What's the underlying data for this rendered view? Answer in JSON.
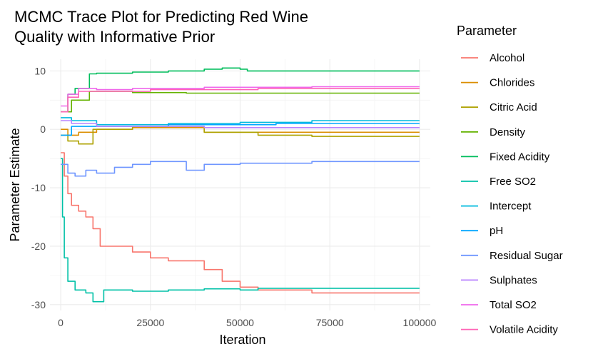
{
  "chart_data": {
    "type": "line",
    "title_lines": [
      "MCMC Trace Plot for Predicting Red Wine",
      "Quality with Informative Prior"
    ],
    "xlabel": "Iteration",
    "ylabel": "Parameter Estimate",
    "xlim": [
      -3000,
      103000
    ],
    "ylim": [
      -31,
      12
    ],
    "x_ticks": [
      0,
      25000,
      50000,
      75000,
      100000
    ],
    "x_tick_labels": [
      "0",
      "25000",
      "50000",
      "75000",
      "100000"
    ],
    "y_ticks": [
      -30,
      -20,
      -10,
      0,
      10
    ],
    "y_tick_labels": [
      "-30",
      "-20",
      "-10",
      "0",
      "10"
    ],
    "grid": true,
    "legend_title": "Parameter",
    "legend_position": "right",
    "series": [
      {
        "name": "Alcohol",
        "color": "#F8766D",
        "step": true,
        "x": [
          0,
          1000,
          2000,
          3000,
          5000,
          7000,
          9000,
          11000,
          20000,
          25000,
          30000,
          40000,
          45000,
          50000,
          55000,
          70000,
          100000
        ],
        "y": [
          -4,
          -8,
          -11,
          -13,
          -14,
          -15,
          -17,
          -20,
          -21,
          -22,
          -22.5,
          -24,
          -26,
          -27,
          -27.5,
          -28,
          -28
        ]
      },
      {
        "name": "Chlorides",
        "color": "#DB8E00",
        "step": true,
        "x": [
          0,
          2000,
          5000,
          10000,
          20000,
          40000,
          50000,
          100000
        ],
        "y": [
          0,
          -1,
          -0.5,
          0,
          0.3,
          -0.5,
          -0.5,
          -0.5
        ]
      },
      {
        "name": "Citric Acid",
        "color": "#AEA200",
        "step": true,
        "x": [
          0,
          2000,
          5000,
          9000,
          20000,
          40000,
          55000,
          70000,
          100000
        ],
        "y": [
          -1,
          -2,
          -2.5,
          0,
          0.5,
          -0.5,
          -1,
          -1.2,
          -1.2
        ]
      },
      {
        "name": "Density",
        "color": "#64B200",
        "step": true,
        "x": [
          0,
          3000,
          8000,
          20000,
          35000,
          50000,
          100000
        ],
        "y": [
          3,
          5,
          6.5,
          6.3,
          6.2,
          6.2,
          6.2
        ]
      },
      {
        "name": "Fixed Acidity",
        "color": "#00BD5C",
        "step": true,
        "x": [
          0,
          2000,
          4000,
          8000,
          10000,
          20000,
          30000,
          40000,
          45000,
          50000,
          52000,
          60000,
          100000
        ],
        "y": [
          3,
          6,
          7,
          9.5,
          9.6,
          9.8,
          10,
          10.3,
          10.5,
          10.3,
          10,
          10,
          10
        ]
      },
      {
        "name": "Free SO2",
        "color": "#00C1A7",
        "step": true,
        "x": [
          0,
          500,
          1000,
          2000,
          4000,
          7000,
          9000,
          12000,
          20000,
          30000,
          40000,
          50000,
          55000,
          100000
        ],
        "y": [
          -5,
          -15,
          -22,
          -26,
          -27.5,
          -28,
          -29.5,
          -27.5,
          -27.7,
          -27.5,
          -27.3,
          -27.5,
          -27.2,
          -27.2
        ]
      },
      {
        "name": "Intercept",
        "color": "#00BADE",
        "step": true,
        "x": [
          0,
          3000,
          10000,
          30000,
          50000,
          70000,
          100000
        ],
        "y": [
          2,
          1.5,
          0.8,
          1,
          1.2,
          1.5,
          1.5
        ]
      },
      {
        "name": "pH",
        "color": "#00A6FF",
        "step": true,
        "x": [
          0,
          3000,
          10000,
          30000,
          60000,
          100000
        ],
        "y": [
          -1,
          0.5,
          0.5,
          0.8,
          1,
          1
        ]
      },
      {
        "name": "Residual Sugar",
        "color": "#6F96FF",
        "step": true,
        "x": [
          0,
          2000,
          4000,
          7000,
          10000,
          15000,
          20000,
          25000,
          35000,
          40000,
          50000,
          70000,
          100000
        ],
        "y": [
          -6,
          -7.5,
          -8,
          -7,
          -7.5,
          -6.5,
          -6,
          -5.5,
          -7,
          -6,
          -5.8,
          -5.5,
          -5.5
        ]
      },
      {
        "name": "Sulphates",
        "color": "#B983FF",
        "step": true,
        "x": [
          0,
          3000,
          10000,
          40000,
          100000
        ],
        "y": [
          1.5,
          1,
          0.5,
          0.3,
          0.3
        ]
      },
      {
        "name": "Total SO2",
        "color": "#EF67EB",
        "step": true,
        "x": [
          0,
          2000,
          5000,
          10000,
          20000,
          40000,
          70000,
          100000
        ],
        "y": [
          4,
          6,
          7,
          6.8,
          7,
          7.2,
          7.3,
          7.3
        ]
      },
      {
        "name": "Volatile Acidity",
        "color": "#FF63B6",
        "step": true,
        "x": [
          0,
          2000,
          5000,
          10000,
          25000,
          40000,
          55000,
          100000
        ],
        "y": [
          3,
          5.5,
          6.5,
          6.5,
          6.8,
          6.8,
          7,
          7
        ]
      }
    ]
  }
}
